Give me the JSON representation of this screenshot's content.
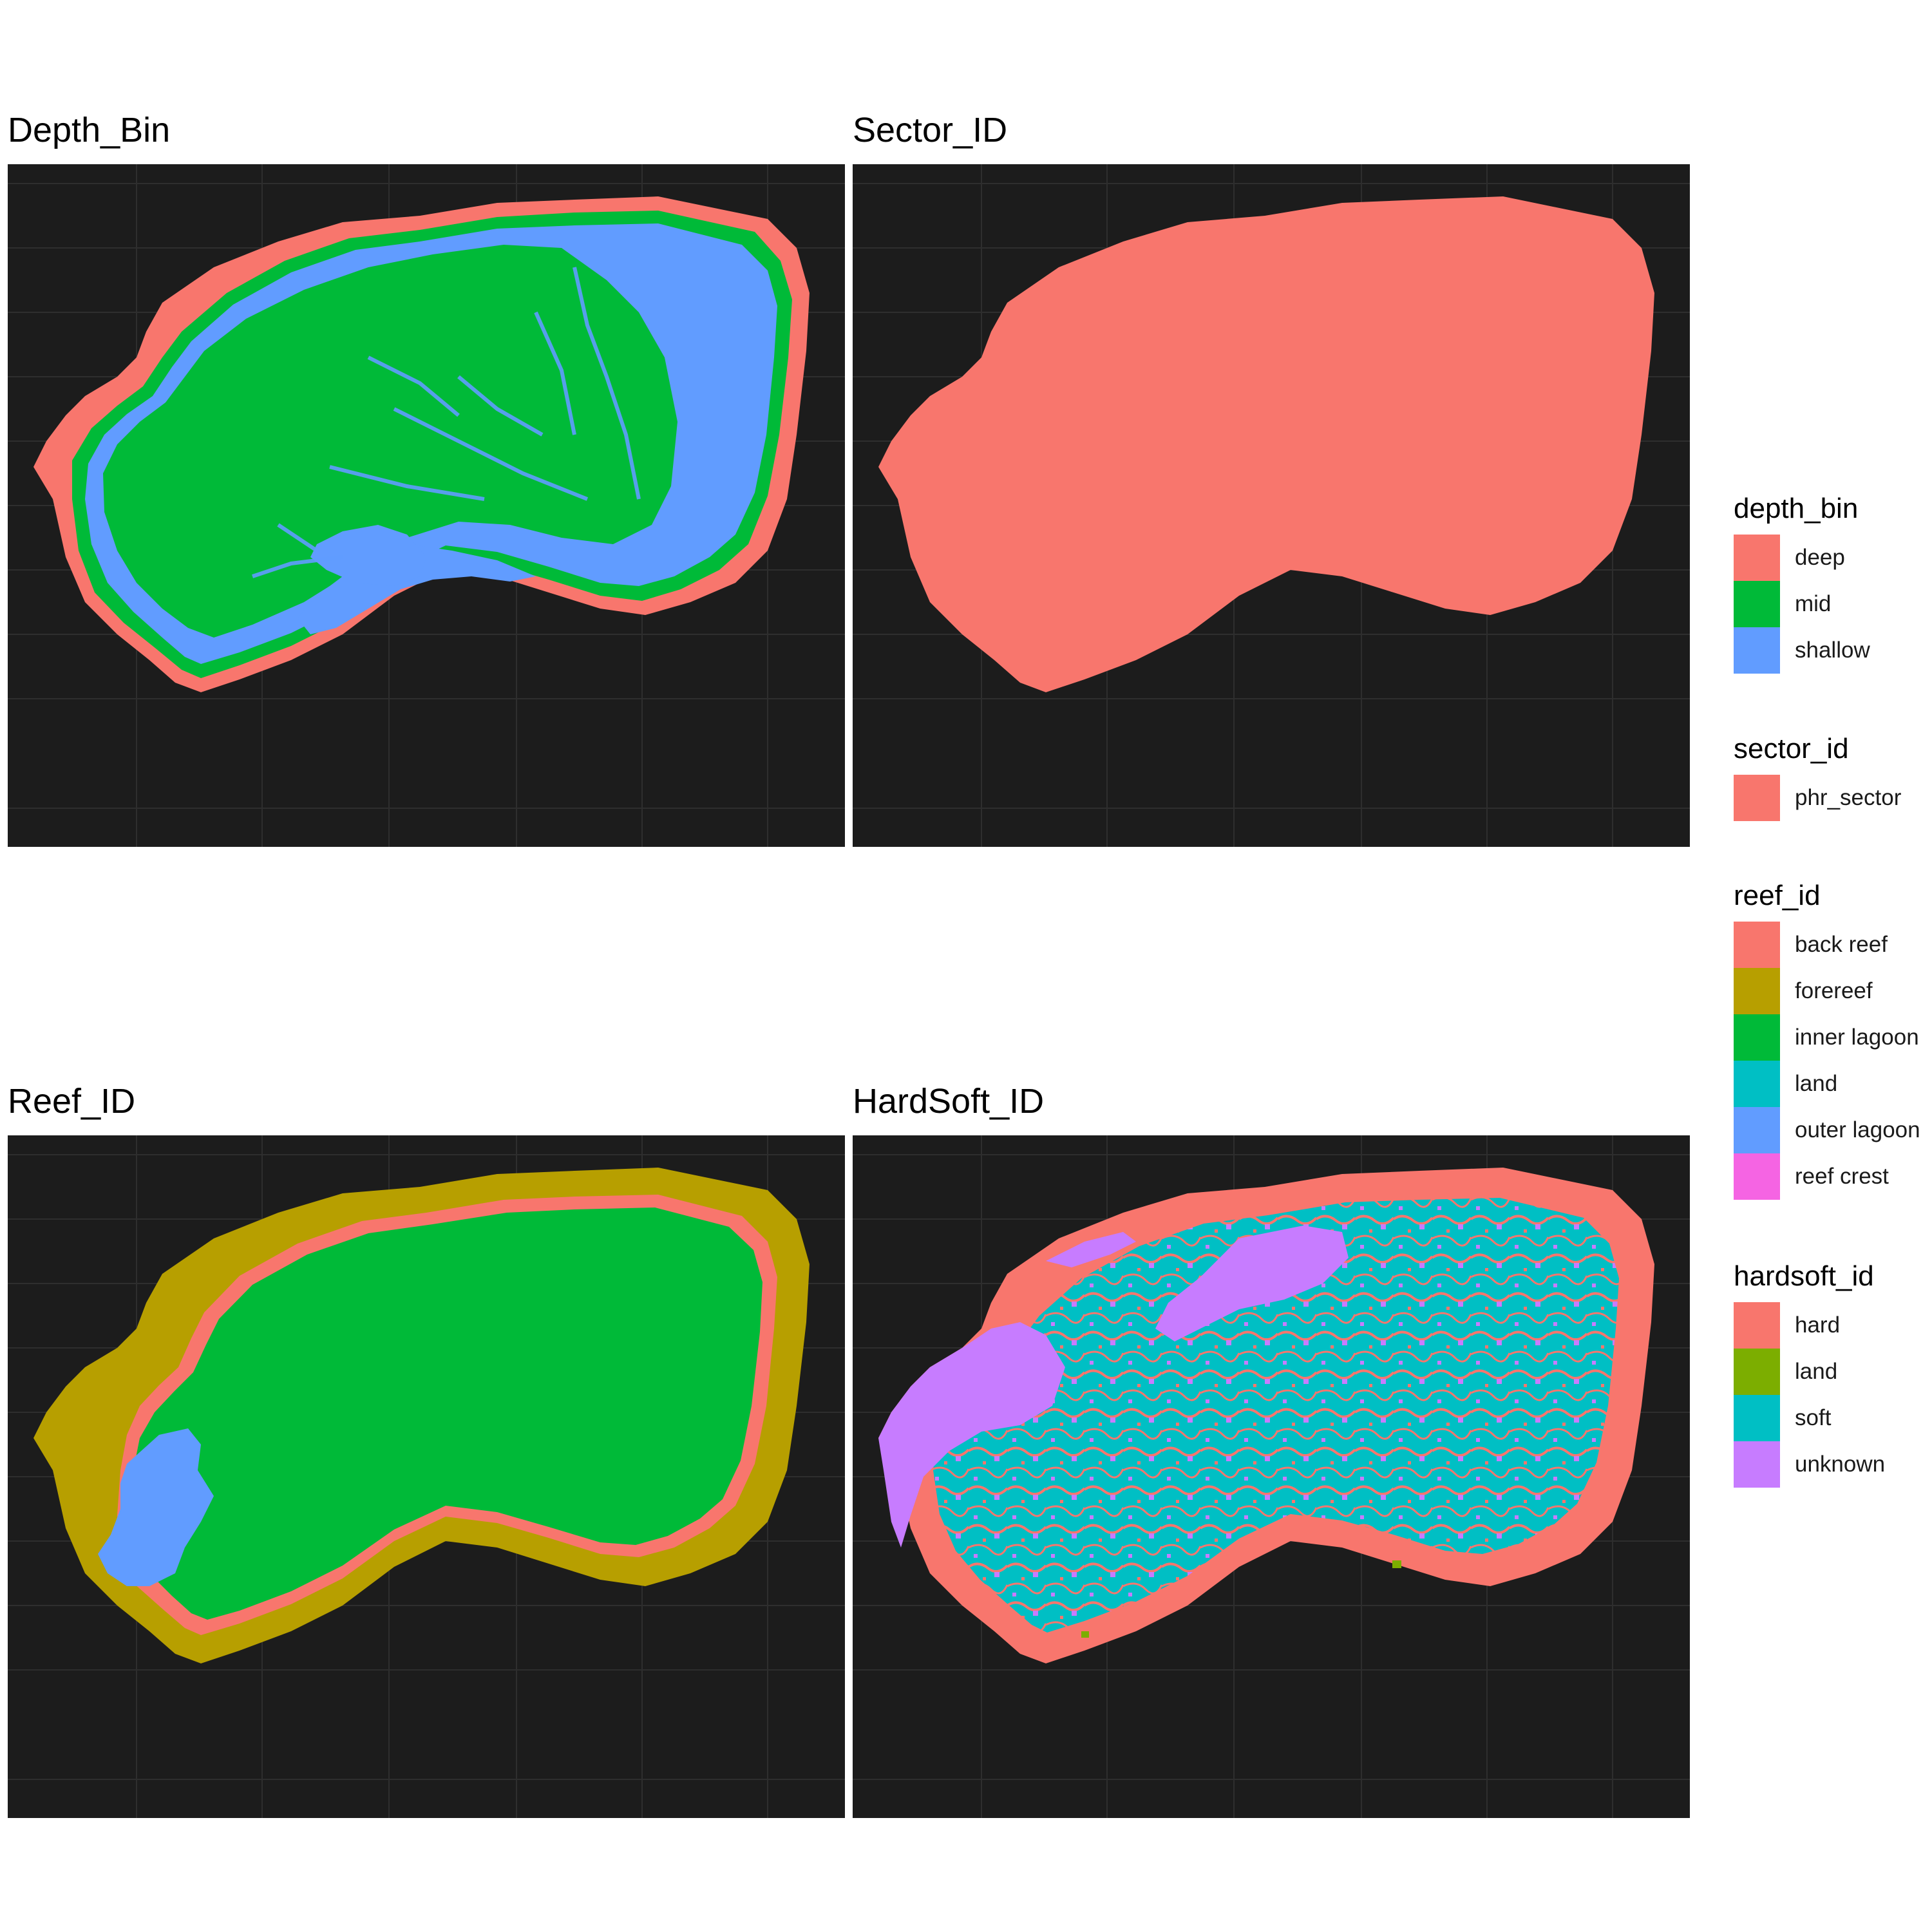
{
  "panels": [
    {
      "title": "Depth_Bin"
    },
    {
      "title": "Sector_ID"
    },
    {
      "title": "Reef_ID"
    },
    {
      "title": "HardSoft_ID"
    }
  ],
  "colors": {
    "panel_bg": "#1c1c1c",
    "gridline": "#2e2e2e"
  },
  "legends": [
    {
      "title": "depth_bin",
      "items": [
        {
          "label": "deep",
          "color": "#F8766D"
        },
        {
          "label": "mid",
          "color": "#00BA38"
        },
        {
          "label": "shallow",
          "color": "#619CFF"
        }
      ]
    },
    {
      "title": "sector_id",
      "items": [
        {
          "label": "phr_sector",
          "color": "#F8766D"
        }
      ]
    },
    {
      "title": "reef_id",
      "items": [
        {
          "label": "back reef",
          "color": "#F8766D"
        },
        {
          "label": "forereef",
          "color": "#B79F00"
        },
        {
          "label": "inner lagoon",
          "color": "#00BA38"
        },
        {
          "label": "land",
          "color": "#00BFC4"
        },
        {
          "label": "outer lagoon",
          "color": "#619CFF"
        },
        {
          "label": "reef crest",
          "color": "#F564E3"
        }
      ]
    },
    {
      "title": "hardsoft_id",
      "items": [
        {
          "label": "hard",
          "color": "#F8766D"
        },
        {
          "label": "land",
          "color": "#7CAE00"
        },
        {
          "label": "soft",
          "color": "#00BFC4"
        },
        {
          "label": "unknown",
          "color": "#C77CFF"
        }
      ]
    }
  ]
}
